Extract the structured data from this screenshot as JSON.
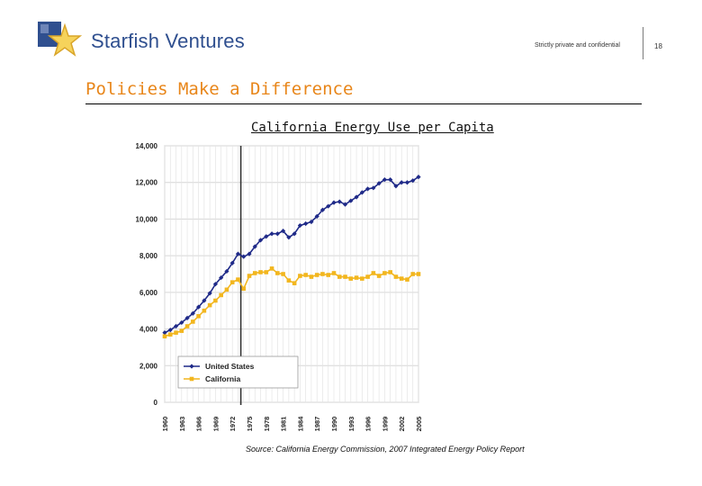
{
  "header": {
    "brand": "Starfish Ventures",
    "confidential": "Strictly private and confidential",
    "page_number": "18"
  },
  "slide": {
    "title": "Policies Make a Difference"
  },
  "source_note": "Source: California Energy Commission, 2007 Integrated Energy Policy Report",
  "colors": {
    "brand_blue": "#2f4f8f",
    "title_orange": "#e8861a",
    "us_series": "#1f2a88",
    "ca_series": "#f2b61e"
  },
  "chart_data": {
    "type": "line",
    "title": "California Energy Use per Capita",
    "xlabel": "",
    "ylabel": "",
    "ylim": [
      0,
      14000
    ],
    "yticks": [
      0,
      2000,
      4000,
      6000,
      8000,
      10000,
      12000,
      14000
    ],
    "ytick_labels": [
      "0",
      "2,000",
      "4,000",
      "6,000",
      "8,000",
      "10,000",
      "12,000",
      "14,000"
    ],
    "xticks": [
      1960,
      1963,
      1966,
      1969,
      1972,
      1975,
      1978,
      1981,
      1984,
      1987,
      1990,
      1993,
      1996,
      1999,
      2002,
      2005
    ],
    "grid": true,
    "legend": "bottom-left",
    "marker_line_year": 1973.5,
    "x": [
      1960,
      1961,
      1962,
      1963,
      1964,
      1965,
      1966,
      1967,
      1968,
      1969,
      1970,
      1971,
      1972,
      1973,
      1974,
      1975,
      1976,
      1977,
      1978,
      1979,
      1980,
      1981,
      1982,
      1983,
      1984,
      1985,
      1986,
      1987,
      1988,
      1989,
      1990,
      1991,
      1992,
      1993,
      1994,
      1995,
      1996,
      1997,
      1998,
      1999,
      2000,
      2001,
      2002,
      2003,
      2004,
      2005
    ],
    "series": [
      {
        "name": "United States",
        "color": "#1f2a88",
        "marker": "diamond",
        "values": [
          3800,
          3950,
          4150,
          4350,
          4600,
          4850,
          5200,
          5550,
          5950,
          6450,
          6800,
          7150,
          7600,
          8100,
          7950,
          8100,
          8500,
          8850,
          9050,
          9200,
          9200,
          9350,
          9000,
          9200,
          9650,
          9750,
          9850,
          10150,
          10500,
          10700,
          10900,
          10950,
          10800,
          11000,
          11200,
          11450,
          11650,
          11700,
          11950,
          12150,
          12150,
          11800,
          12000,
          12000,
          12100,
          12300
        ]
      },
      {
        "name": "California",
        "color": "#f2b61e",
        "marker": "square",
        "values": [
          3600,
          3700,
          3800,
          3900,
          4150,
          4400,
          4700,
          5000,
          5300,
          5550,
          5850,
          6150,
          6550,
          6700,
          6200,
          6900,
          7050,
          7100,
          7100,
          7300,
          7050,
          7000,
          6650,
          6500,
          6900,
          6950,
          6850,
          6950,
          7000,
          6950,
          7050,
          6850,
          6850,
          6750,
          6800,
          6750,
          6850,
          7050,
          6900,
          7050,
          7100,
          6850,
          6750,
          6700,
          7000,
          7000
        ]
      }
    ]
  }
}
